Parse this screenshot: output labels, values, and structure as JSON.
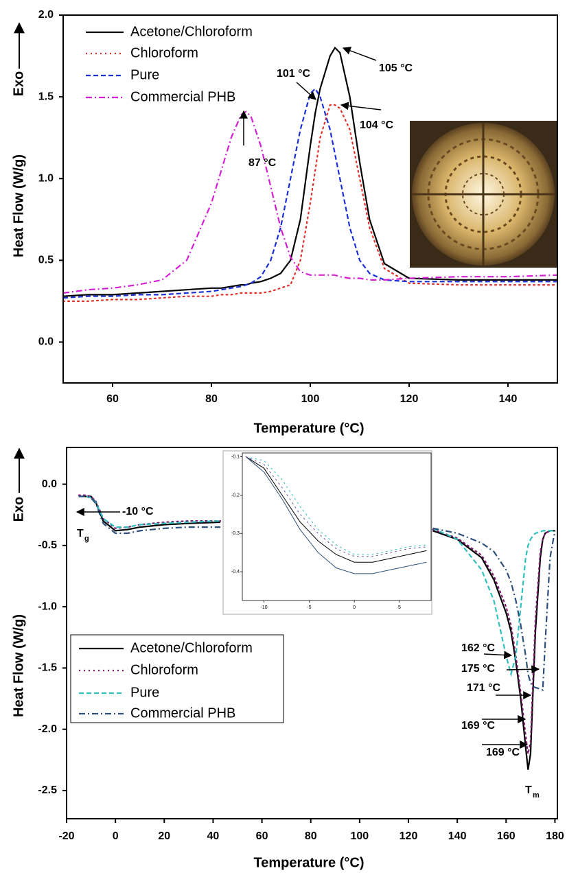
{
  "chart_data": [
    {
      "type": "line",
      "x_label": "Temperature (°C)",
      "y_label": "Heat Flow (W/g)",
      "exo_label": "Exo",
      "xlim": [
        50,
        150
      ],
      "ylim": [
        -0.25,
        2.0
      ],
      "xticks": [
        60,
        80,
        100,
        120,
        140
      ],
      "yticks": [
        {
          "value": 0,
          "label": "0.0"
        },
        0.5,
        {
          "value": 1,
          "label": "1.0"
        },
        1.5,
        {
          "value": 2,
          "label": "2.0"
        }
      ],
      "legend": "upper left",
      "x": [
        50,
        55,
        60,
        65,
        70,
        75,
        80,
        82,
        84,
        86,
        87,
        88,
        90,
        92,
        94,
        96,
        98,
        100,
        101,
        102,
        104,
        105,
        106,
        108,
        110,
        112,
        115,
        120,
        130,
        140,
        150
      ],
      "series": [
        {
          "name": "Acetone/Chloroform",
          "color": "#000000",
          "style": "solid",
          "values": [
            0.28,
            0.29,
            0.29,
            0.3,
            0.31,
            0.32,
            0.33,
            0.33,
            0.34,
            0.35,
            0.35,
            0.36,
            0.37,
            0.39,
            0.42,
            0.5,
            0.75,
            1.2,
            1.4,
            1.55,
            1.75,
            1.8,
            1.77,
            1.5,
            1.1,
            0.75,
            0.48,
            0.39,
            0.38,
            0.38,
            0.38
          ]
        },
        {
          "name": "Chloroform",
          "color": "#e0302a",
          "style": "dotted",
          "values": [
            0.25,
            0.25,
            0.26,
            0.26,
            0.27,
            0.28,
            0.28,
            0.29,
            0.29,
            0.3,
            0.3,
            0.3,
            0.3,
            0.31,
            0.33,
            0.35,
            0.5,
            0.85,
            1.05,
            1.25,
            1.45,
            1.45,
            1.43,
            1.3,
            1.0,
            0.7,
            0.45,
            0.36,
            0.35,
            0.35,
            0.35
          ]
        },
        {
          "name": "Pure",
          "color": "#1a2fd6",
          "style": "dashed",
          "values": [
            0.27,
            0.28,
            0.28,
            0.29,
            0.29,
            0.3,
            0.31,
            0.32,
            0.33,
            0.34,
            0.35,
            0.36,
            0.4,
            0.5,
            0.7,
            1.0,
            1.3,
            1.52,
            1.55,
            1.5,
            1.3,
            1.15,
            1.0,
            0.7,
            0.5,
            0.42,
            0.38,
            0.37,
            0.37,
            0.37,
            0.37
          ]
        },
        {
          "name": "Commercial PHB",
          "color": "#d41fd4",
          "style": "dashdot",
          "values": [
            0.3,
            0.32,
            0.33,
            0.35,
            0.38,
            0.5,
            0.85,
            1.05,
            1.25,
            1.39,
            1.41,
            1.38,
            1.2,
            0.95,
            0.7,
            0.52,
            0.43,
            0.41,
            0.41,
            0.41,
            0.41,
            0.41,
            0.4,
            0.39,
            0.39,
            0.38,
            0.38,
            0.39,
            0.4,
            0.4,
            0.41
          ]
        }
      ],
      "annotations": [
        "105 °C",
        "104 °C",
        "101 °C",
        "87 °C"
      ]
    },
    {
      "type": "line",
      "x_label": "Temperature (°C)",
      "y_label": "Heat Flow (W/g)",
      "exo_label": "Exo",
      "xlim": [
        -20,
        181
      ],
      "ylim": [
        -2.73,
        0.3
      ],
      "xticks": [
        -20,
        0,
        20,
        40,
        60,
        80,
        100,
        120,
        140,
        160,
        180
      ],
      "yticks": [
        {
          "value": 0,
          "label": "0.0"
        },
        -0.5,
        {
          "value": -1,
          "label": "-1.0"
        },
        -1.5,
        {
          "value": -2,
          "label": "-2.0"
        },
        -2.5
      ],
      "legend": "center left",
      "x": [
        -15,
        -12,
        -10,
        -8,
        -5,
        0,
        5,
        10,
        20,
        30,
        43,
        80,
        130,
        140,
        150,
        155,
        160,
        162,
        164,
        166,
        168,
        169,
        170,
        171,
        172,
        174,
        175,
        176,
        178,
        180
      ],
      "series": [
        {
          "name": "Acetone/Chloroform",
          "color": "#000000",
          "style": "solid",
          "values": [
            -0.1,
            -0.1,
            -0.1,
            -0.15,
            -0.3,
            -0.38,
            -0.37,
            -0.35,
            -0.33,
            -0.32,
            -0.31,
            null,
            -0.38,
            -0.45,
            -0.6,
            -0.78,
            -1.05,
            -1.2,
            -1.45,
            -1.75,
            -2.15,
            -2.33,
            -2.2,
            -1.7,
            -1.2,
            -0.6,
            -0.45,
            -0.4,
            -0.38,
            -0.38
          ]
        },
        {
          "name": "Chloroform",
          "color": "#7a1a6e",
          "style": "dotted",
          "values": [
            -0.09,
            -0.09,
            -0.1,
            -0.14,
            -0.28,
            -0.36,
            -0.35,
            -0.33,
            -0.31,
            -0.3,
            -0.3,
            null,
            -0.37,
            -0.44,
            -0.58,
            -0.75,
            -1.0,
            -1.15,
            -1.4,
            -1.7,
            -2.05,
            -2.2,
            -2.1,
            -1.6,
            -1.1,
            -0.55,
            -0.45,
            -0.4,
            -0.38,
            -0.38
          ]
        },
        {
          "name": "Pure",
          "color": "#2fbfbf",
          "style": "dashed",
          "values": [
            -0.1,
            -0.1,
            -0.11,
            -0.15,
            -0.28,
            -0.35,
            -0.35,
            -0.33,
            -0.32,
            -0.31,
            -0.3,
            null,
            -0.36,
            -0.45,
            -0.7,
            -0.95,
            -1.4,
            -1.55,
            -1.4,
            -1.0,
            -0.6,
            -0.5,
            -0.45,
            -0.42,
            -0.4,
            -0.39,
            -0.38,
            -0.38,
            -0.38,
            -0.38
          ]
        },
        {
          "name": "Commercial PHB",
          "color": "#2b4f7a",
          "style": "dashdot",
          "values": [
            -0.1,
            -0.1,
            -0.11,
            -0.16,
            -0.32,
            -0.4,
            -0.4,
            -0.38,
            -0.36,
            -0.35,
            -0.35,
            null,
            -0.36,
            -0.4,
            -0.48,
            -0.55,
            -0.7,
            -0.8,
            -0.95,
            -1.15,
            -1.4,
            -1.55,
            -1.62,
            -1.65,
            -1.66,
            -1.67,
            -1.68,
            -1.3,
            -0.6,
            -0.38
          ]
        }
      ],
      "annotations": [
        "-10 °C",
        "162 °C",
        "175 °C",
        "171 °C",
        "169 °C",
        "169 °C"
      ],
      "phase_labels": [
        {
          "text": "T",
          "subscript": "g"
        },
        {
          "text": "T",
          "subscript": "m"
        }
      ]
    },
    {
      "type": "line",
      "xlim": [
        -12.4,
        8.5
      ],
      "ylim": [
        -0.475,
        -0.09
      ],
      "xticks": [
        -10,
        -5,
        0,
        5
      ],
      "yticks": [
        -0.1,
        -0.2,
        -0.3,
        -0.4
      ],
      "x": [
        -12,
        -10,
        -8,
        -6,
        -4,
        -2,
        0,
        2,
        4,
        6,
        8
      ],
      "series": [
        {
          "color": "#000000",
          "style": "solid",
          "values": [
            -0.1,
            -0.13,
            -0.2,
            -0.27,
            -0.32,
            -0.355,
            -0.375,
            -0.375,
            -0.365,
            -0.355,
            -0.345
          ]
        },
        {
          "color": "#2b4f7a",
          "style": "solid",
          "values": [
            -0.1,
            -0.14,
            -0.21,
            -0.29,
            -0.35,
            -0.39,
            -0.405,
            -0.405,
            -0.395,
            -0.385,
            -0.375
          ]
        },
        {
          "color": "#2fbfbf",
          "style": "dotted",
          "values": [
            -0.1,
            -0.11,
            -0.16,
            -0.23,
            -0.29,
            -0.33,
            -0.355,
            -0.355,
            -0.345,
            -0.335,
            -0.33
          ]
        },
        {
          "color": "#6a4fa0",
          "style": "dotted",
          "values": [
            -0.1,
            -0.12,
            -0.18,
            -0.25,
            -0.3,
            -0.34,
            -0.36,
            -0.36,
            -0.35,
            -0.34,
            -0.335
          ]
        }
      ]
    }
  ]
}
